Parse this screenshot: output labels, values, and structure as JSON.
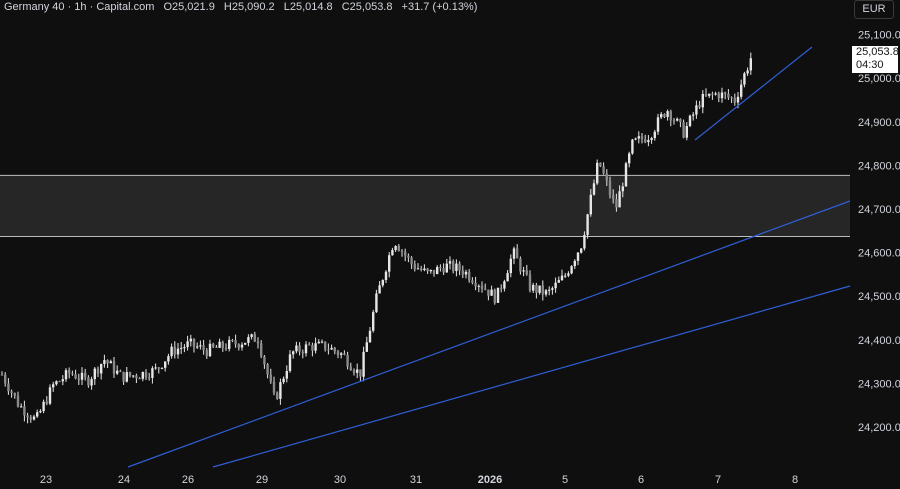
{
  "header": {
    "symbol": "Germany 40 · 1h · Capital.com",
    "open": "O25,021.9",
    "high": "H25,090.2",
    "low": "L25,014.8",
    "close": "C25,053.8",
    "change": "+31.7 (+0.13%)"
  },
  "currency_button": "EUR",
  "price_label": {
    "price": "25,053.8",
    "countdown": "04:30"
  },
  "colors": {
    "background": "#0f0f0f",
    "candle": "#e6e6e6",
    "trendline": "#2f5fd6",
    "zone_fill": "#262626",
    "zone_border": "#bdbdbd",
    "axis_text": "#d1d4dc"
  },
  "chart_data": {
    "type": "candlestick",
    "title": "Germany 40 · 1h · Capital.com",
    "xlabel": "",
    "ylabel": "",
    "ylim": [
      24150,
      25150
    ],
    "y_ticks": [
      "24,200.0",
      "24,300.0",
      "24,400.0",
      "24,500.0",
      "24,600.0",
      "24,700.0",
      "24,800.0",
      "24,900.0",
      "25,000.0",
      "25,100.0"
    ],
    "x_ticks": [
      {
        "label": "23",
        "bold": false
      },
      {
        "label": "24",
        "bold": false
      },
      {
        "label": "26",
        "bold": false
      },
      {
        "label": "29",
        "bold": false
      },
      {
        "label": "30",
        "bold": false
      },
      {
        "label": "31",
        "bold": false
      },
      {
        "label": "2026",
        "bold": true
      },
      {
        "label": "5",
        "bold": false
      },
      {
        "label": "6",
        "bold": false
      },
      {
        "label": "7",
        "bold": false
      },
      {
        "label": "8",
        "bold": false
      }
    ],
    "grid": false,
    "legend": "none",
    "current_price": 25053.8,
    "resistance_zone": [
      24637,
      24777
    ],
    "trendlines": [
      {
        "from": [
          "23 Dec",
          24110
        ],
        "to": [
          "8 Jan",
          24725
        ]
      },
      {
        "from": [
          "24 Dec",
          24110
        ],
        "to": [
          "8 Jan",
          24530
        ]
      },
      {
        "from": [
          "6 Jan",
          24865
        ],
        "to": [
          "7 Jan",
          25068
        ]
      }
    ],
    "series": [
      {
        "close_path": [
          [
            "23 Dec",
            24320
          ],
          [
            "23 Dec",
            24250
          ],
          [
            "23 Dec",
            24215
          ],
          [
            "23 Dec",
            24295
          ],
          [
            "23 Dec",
            24325
          ],
          [
            "24 Dec",
            24305
          ],
          [
            "24 Dec",
            24355
          ],
          [
            "24 Dec",
            24315
          ],
          [
            "24 Dec",
            24320
          ],
          [
            "24 Dec",
            24330
          ],
          [
            "26 Dec",
            24375
          ],
          [
            "26 Dec",
            24390
          ],
          [
            "26 Dec",
            24375
          ],
          [
            "26 Dec",
            24385
          ],
          [
            "29 Dec",
            24395
          ],
          [
            "29 Dec",
            24405
          ],
          [
            "29 Dec",
            24260
          ],
          [
            "29 Dec",
            24370
          ],
          [
            "29 Dec",
            24385
          ],
          [
            "30 Dec",
            24385
          ],
          [
            "30 Dec",
            24365
          ],
          [
            "30 Dec",
            24320
          ],
          [
            "30 Dec",
            24500
          ],
          [
            "30 Dec",
            24630
          ],
          [
            "31 Dec",
            24575
          ],
          [
            "31 Dec",
            24550
          ],
          [
            "31 Dec",
            24570
          ],
          [
            "31 Dec",
            24560
          ],
          [
            "2 Jan",
            24530
          ],
          [
            "2 Jan",
            24495
          ],
          [
            "2 Jan",
            24600
          ],
          [
            "2 Jan",
            24520
          ],
          [
            "5 Jan",
            24505
          ],
          [
            "5 Jan",
            24545
          ],
          [
            "5 Jan",
            24620
          ],
          [
            "5 Jan",
            24810
          ],
          [
            "5 Jan",
            24700
          ],
          [
            "6 Jan",
            24850
          ],
          [
            "6 Jan",
            24870
          ],
          [
            "6 Jan",
            24930
          ],
          [
            "6 Jan",
            24875
          ],
          [
            "6 Jan",
            24950
          ],
          [
            "7 Jan",
            24965
          ],
          [
            "7 Jan",
            24950
          ],
          [
            "7 Jan",
            25053.8
          ]
        ]
      }
    ]
  }
}
